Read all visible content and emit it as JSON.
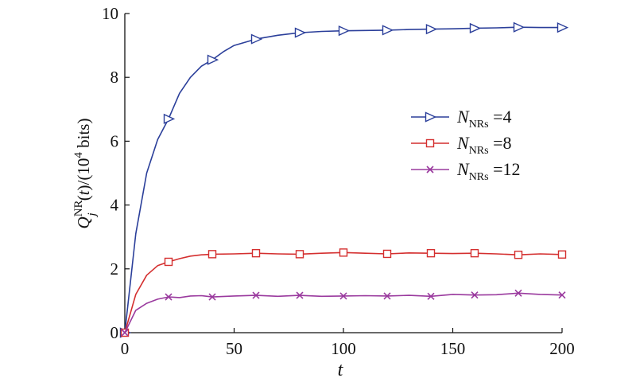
{
  "chart_data": {
    "type": "line",
    "xlabel": "t",
    "ylabel": {
      "main": "Q",
      "superscript": "NR",
      "subscript": "j",
      "suffix_open": "(",
      "variable": "t",
      "suffix_close": ")/(10",
      "power": "4",
      "unit": " bits)"
    },
    "xlim": [
      0,
      200
    ],
    "ylim": [
      0,
      10
    ],
    "xticks": [
      "0",
      "50",
      "100",
      "150",
      "200"
    ],
    "yticks": [
      "0",
      "2",
      "4",
      "6",
      "8",
      "10"
    ],
    "grid": false,
    "legend_position": "right-middle",
    "series": [
      {
        "name": "N_NRs =4",
        "legend": {
          "symbol": "N",
          "subscript": "NRs",
          "text": " =4"
        },
        "color": "#2b3f9a",
        "marker": "triangle-right",
        "x": [
          0,
          5,
          10,
          15,
          20,
          25,
          30,
          35,
          40,
          45,
          50,
          55,
          60,
          70,
          80,
          90,
          100,
          110,
          120,
          130,
          140,
          150,
          160,
          170,
          180,
          190,
          200
        ],
        "y": [
          0,
          3.1,
          5.0,
          6.05,
          6.7,
          7.5,
          8.0,
          8.35,
          8.55,
          8.8,
          9.0,
          9.1,
          9.2,
          9.32,
          9.4,
          9.44,
          9.46,
          9.47,
          9.48,
          9.5,
          9.51,
          9.52,
          9.54,
          9.55,
          9.57,
          9.56,
          9.56
        ],
        "marker_x": [
          0,
          20,
          40,
          60,
          80,
          100,
          120,
          140,
          160,
          180,
          200
        ],
        "marker_y": [
          0,
          6.7,
          8.55,
          9.2,
          9.4,
          9.46,
          9.48,
          9.51,
          9.54,
          9.57,
          9.56
        ]
      },
      {
        "name": "N_NRs =8",
        "legend": {
          "symbol": "N",
          "subscript": "NRs",
          "text": " =8"
        },
        "color": "#d42f2f",
        "marker": "square",
        "x": [
          0,
          5,
          10,
          15,
          20,
          25,
          30,
          35,
          40,
          50,
          60,
          70,
          80,
          90,
          100,
          110,
          120,
          130,
          140,
          150,
          160,
          170,
          180,
          190,
          200
        ],
        "y": [
          0,
          1.2,
          1.8,
          2.1,
          2.22,
          2.32,
          2.4,
          2.44,
          2.46,
          2.47,
          2.49,
          2.47,
          2.46,
          2.49,
          2.51,
          2.49,
          2.47,
          2.5,
          2.49,
          2.48,
          2.49,
          2.47,
          2.44,
          2.47,
          2.45
        ],
        "marker_x": [
          0,
          20,
          40,
          60,
          80,
          100,
          120,
          140,
          160,
          180,
          200
        ],
        "marker_y": [
          0,
          2.22,
          2.46,
          2.49,
          2.46,
          2.51,
          2.47,
          2.49,
          2.49,
          2.44,
          2.45
        ]
      },
      {
        "name": "N_NRs =12",
        "legend": {
          "symbol": "N",
          "subscript": "NRs",
          "text": " =12"
        },
        "color": "#9a3a9e",
        "marker": "x",
        "x": [
          0,
          5,
          10,
          15,
          20,
          25,
          30,
          35,
          40,
          50,
          60,
          70,
          80,
          90,
          100,
          110,
          120,
          130,
          140,
          150,
          160,
          170,
          180,
          190,
          200
        ],
        "y": [
          0,
          0.7,
          0.92,
          1.05,
          1.12,
          1.1,
          1.15,
          1.16,
          1.12,
          1.15,
          1.17,
          1.14,
          1.17,
          1.14,
          1.15,
          1.16,
          1.15,
          1.17,
          1.14,
          1.2,
          1.18,
          1.19,
          1.24,
          1.2,
          1.18
        ],
        "marker_x": [
          0,
          20,
          40,
          60,
          80,
          100,
          120,
          140,
          160,
          180,
          200
        ],
        "marker_y": [
          0,
          1.12,
          1.12,
          1.17,
          1.17,
          1.15,
          1.15,
          1.14,
          1.18,
          1.24,
          1.18
        ]
      }
    ]
  }
}
